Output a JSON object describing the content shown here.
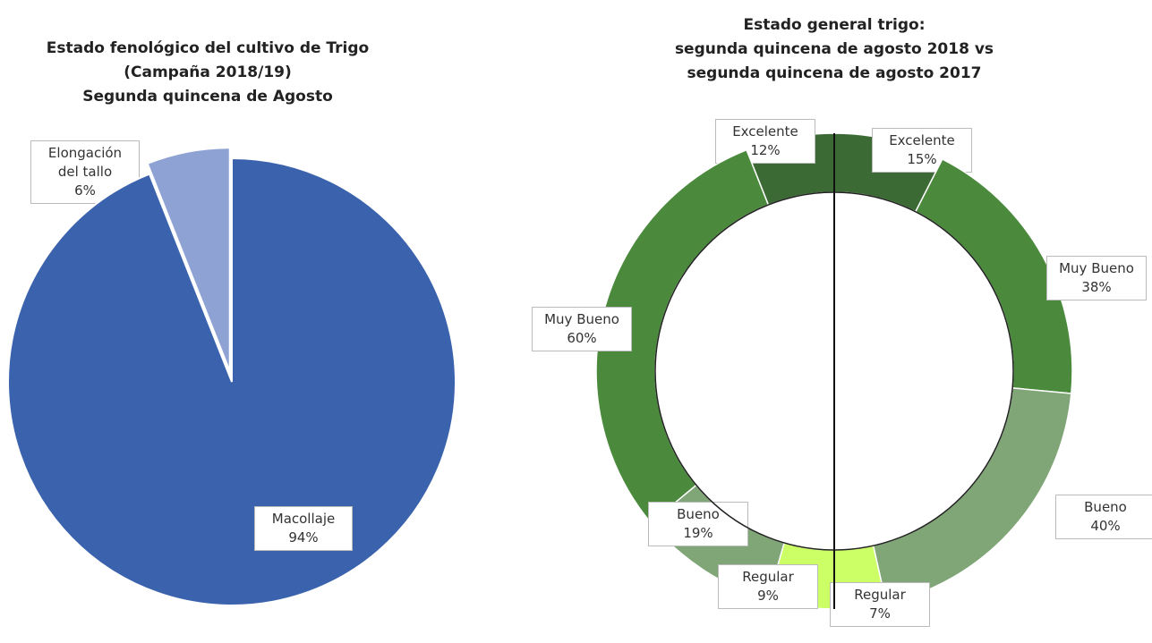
{
  "chart_data": [
    {
      "type": "pie",
      "title": [
        "Estado fenológico del cultivo de Trigo",
        "(Campaña 2018/19)",
        "Segunda quincena de Agosto"
      ],
      "categories": [
        "Elongación del tallo",
        "Macollaje"
      ],
      "values": [
        6,
        94
      ],
      "value_labels": [
        "6%",
        "94%"
      ],
      "colors": [
        "#8fa2d4",
        "#3b63ad"
      ]
    },
    {
      "type": "donut",
      "title": [
        "Estado general trigo:",
        "segunda quincena de agosto 2018 vs",
        "segunda quincena de agosto 2017"
      ],
      "categories": [
        "Excelente",
        "Muy Bueno",
        "Bueno",
        "Regular"
      ],
      "colors": [
        "#3c6a34",
        "#4b8a3d",
        "#80a678",
        "#ccff66"
      ],
      "series": [
        {
          "name": "2° quincena agosto 2017",
          "values": [
            12,
            60,
            19,
            9
          ],
          "value_labels": [
            "12%",
            "60%",
            "19%",
            "9%"
          ]
        },
        {
          "name": "2° quincena agosto 2018",
          "values": [
            15,
            38,
            40,
            7
          ],
          "value_labels": [
            "15%",
            "38%",
            "40%",
            "7%"
          ]
        }
      ]
    }
  ]
}
